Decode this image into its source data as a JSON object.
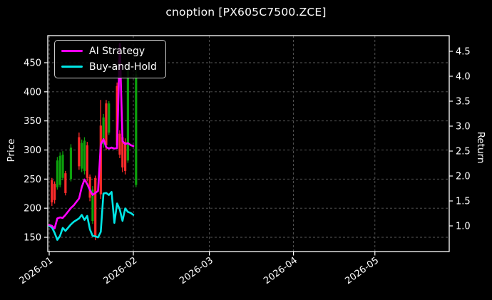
{
  "title": "cnoption [PX605C7500.ZCE]",
  "legend": {
    "items": [
      {
        "label": "AI Strategy",
        "color": "#ff00ff"
      },
      {
        "label": "Buy-and-Hold",
        "color": "#00e5e5"
      }
    ]
  },
  "axes": {
    "left": {
      "label": "Price",
      "ticks": [
        "150",
        "200",
        "250",
        "300",
        "350",
        "400",
        "450"
      ]
    },
    "right": {
      "label": "Return",
      "ticks": [
        "1.0",
        "1.5",
        "2.0",
        "2.5",
        "3.0",
        "3.5",
        "4.0",
        "4.5"
      ]
    },
    "bottom": {
      "ticks": [
        "2026-01",
        "2026-02",
        "2026-03",
        "2026-04",
        "2026-05"
      ]
    }
  },
  "colors": {
    "background": "#000000",
    "text": "#ffffff",
    "spine": "#ffffff",
    "grid": "#6a6a6a",
    "candle_up": "#0ca10c",
    "candle_down": "#ff2b2b",
    "ai_strategy": "#ff00ff",
    "buy_and_hold": "#00e5e5"
  },
  "chart_data": {
    "type": "candlestick+line",
    "title": "cnoption [PX605C7500.ZCE]",
    "x_start": "2026-01-01",
    "x_end": "2026-05-28",
    "xticks": [
      "2026-01",
      "2026-02",
      "2026-03",
      "2026-04",
      "2026-05"
    ],
    "ylabel_left": "Price",
    "ylim_left": [
      124,
      497
    ],
    "yticks_left": [
      150,
      200,
      250,
      300,
      350,
      400,
      450
    ],
    "ylabel_right": "Return",
    "ylim_right": [
      0.49,
      4.81
    ],
    "yticks_right": [
      1.0,
      1.5,
      2.0,
      2.5,
      3.0,
      3.5,
      4.0,
      4.5
    ],
    "grid": "dashed",
    "legend_position": "upper-left",
    "candles": [
      {
        "date": "2026-01-02",
        "open": 248,
        "high": 252,
        "low": 204,
        "close": 210
      },
      {
        "date": "2026-01-03",
        "open": 242,
        "high": 246,
        "low": 208,
        "close": 214
      },
      {
        "date": "2026-01-04",
        "open": 236,
        "high": 288,
        "low": 232,
        "close": 282
      },
      {
        "date": "2026-01-05",
        "open": 240,
        "high": 296,
        "low": 236,
        "close": 290
      },
      {
        "date": "2026-01-06",
        "open": 252,
        "high": 298,
        "low": 248,
        "close": 292
      },
      {
        "date": "2026-01-07",
        "open": 260,
        "high": 264,
        "low": 222,
        "close": 226
      },
      {
        "date": "2026-01-09",
        "open": 250,
        "high": 310,
        "low": 246,
        "close": 304
      },
      {
        "date": "2026-01-12",
        "open": 322,
        "high": 330,
        "low": 266,
        "close": 272
      },
      {
        "date": "2026-01-13",
        "open": 268,
        "high": 318,
        "low": 262,
        "close": 312
      },
      {
        "date": "2026-01-14",
        "open": 264,
        "high": 322,
        "low": 258,
        "close": 316
      },
      {
        "date": "2026-01-15",
        "open": 308,
        "high": 314,
        "low": 246,
        "close": 252
      },
      {
        "date": "2026-01-16",
        "open": 254,
        "high": 258,
        "low": 212,
        "close": 218
      },
      {
        "date": "2026-01-17",
        "open": 178,
        "high": 238,
        "low": 173,
        "close": 232
      },
      {
        "date": "2026-01-18",
        "open": 252,
        "high": 256,
        "low": 145,
        "close": 152
      },
      {
        "date": "2026-01-20",
        "open": 342,
        "high": 386,
        "low": 216,
        "close": 224
      },
      {
        "date": "2026-01-21",
        "open": 310,
        "high": 362,
        "low": 304,
        "close": 356
      },
      {
        "date": "2026-01-22",
        "open": 380,
        "high": 386,
        "low": 300,
        "close": 308
      },
      {
        "date": "2026-01-23",
        "open": 330,
        "high": 384,
        "low": 326,
        "close": 380
      },
      {
        "date": "2026-01-26",
        "open": 410,
        "high": 416,
        "low": 302,
        "close": 308
      },
      {
        "date": "2026-01-27",
        "open": 328,
        "high": 334,
        "low": 286,
        "close": 292
      },
      {
        "date": "2026-01-28",
        "open": 322,
        "high": 332,
        "low": 262,
        "close": 270
      },
      {
        "date": "2026-01-29",
        "open": 314,
        "high": 320,
        "low": 258,
        "close": 264
      },
      {
        "date": "2026-01-30",
        "open": 282,
        "high": 444,
        "low": 278,
        "close": 438
      },
      {
        "date": "2026-02-02",
        "open": 240,
        "high": 438,
        "low": 236,
        "close": 430
      }
    ],
    "series": [
      {
        "name": "AI Strategy",
        "color": "#ff00ff",
        "points": [
          [
            "2026-01-01",
            1.02
          ],
          [
            "2026-01-02",
            1.0
          ],
          [
            "2026-01-03",
            0.95
          ],
          [
            "2026-01-04",
            1.15
          ],
          [
            "2026-01-05",
            1.17
          ],
          [
            "2026-01-06",
            1.16
          ],
          [
            "2026-01-07",
            1.22
          ],
          [
            "2026-01-09",
            1.36
          ],
          [
            "2026-01-10",
            1.41
          ],
          [
            "2026-01-12",
            1.55
          ],
          [
            "2026-01-13",
            1.78
          ],
          [
            "2026-01-14",
            1.93
          ],
          [
            "2026-01-15",
            1.84
          ],
          [
            "2026-01-16",
            1.72
          ],
          [
            "2026-01-17",
            1.62
          ],
          [
            "2026-01-18",
            1.66
          ],
          [
            "2026-01-19",
            1.7
          ],
          [
            "2026-01-20",
            2.63
          ],
          [
            "2026-01-21",
            2.74
          ],
          [
            "2026-01-22",
            2.58
          ],
          [
            "2026-01-23",
            2.55
          ],
          [
            "2026-01-24",
            2.57
          ],
          [
            "2026-01-25",
            2.55
          ],
          [
            "2026-01-26",
            2.56
          ],
          [
            "2026-01-27",
            4.65
          ],
          [
            "2026-01-28",
            2.7
          ],
          [
            "2026-01-29",
            2.64
          ],
          [
            "2026-01-30",
            2.66
          ],
          [
            "2026-01-31",
            2.62
          ],
          [
            "2026-02-01",
            2.6
          ]
        ]
      },
      {
        "name": "Buy-and-Hold",
        "color": "#00e5e5",
        "points": [
          [
            "2026-01-01",
            1.0
          ],
          [
            "2026-01-02",
            0.97
          ],
          [
            "2026-01-03",
            0.86
          ],
          [
            "2026-01-04",
            0.72
          ],
          [
            "2026-01-05",
            0.8
          ],
          [
            "2026-01-06",
            0.96
          ],
          [
            "2026-01-07",
            0.9
          ],
          [
            "2026-01-09",
            1.03
          ],
          [
            "2026-01-10",
            1.08
          ],
          [
            "2026-01-12",
            1.15
          ],
          [
            "2026-01-13",
            1.22
          ],
          [
            "2026-01-14",
            1.12
          ],
          [
            "2026-01-15",
            1.2
          ],
          [
            "2026-01-16",
            0.93
          ],
          [
            "2026-01-17",
            0.8
          ],
          [
            "2026-01-18",
            0.79
          ],
          [
            "2026-01-19",
            0.77
          ],
          [
            "2026-01-20",
            0.88
          ],
          [
            "2026-01-21",
            1.65
          ],
          [
            "2026-01-22",
            1.66
          ],
          [
            "2026-01-23",
            1.62
          ],
          [
            "2026-01-24",
            1.68
          ],
          [
            "2026-01-25",
            1.06
          ],
          [
            "2026-01-26",
            1.45
          ],
          [
            "2026-01-27",
            1.33
          ],
          [
            "2026-01-28",
            1.1
          ],
          [
            "2026-01-29",
            1.35
          ],
          [
            "2026-01-30",
            1.28
          ],
          [
            "2026-01-31",
            1.26
          ],
          [
            "2026-02-01",
            1.22
          ]
        ]
      }
    ]
  }
}
